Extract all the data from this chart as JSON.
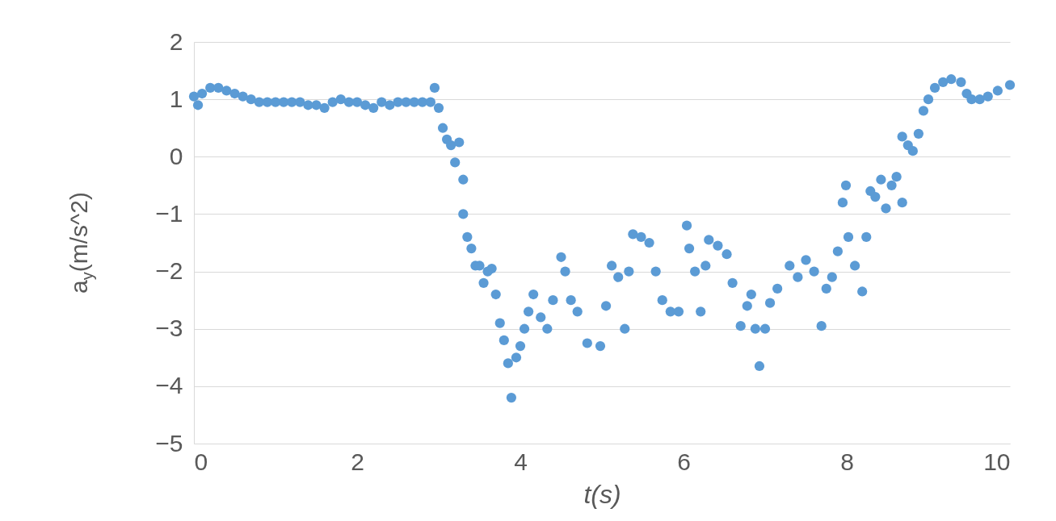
{
  "chart_data": {
    "type": "scatter",
    "xlabel": "t(s)",
    "ylabel": "a$_{y}$(m/s^2)",
    "xlim": [
      0,
      10
    ],
    "xticks": [
      0,
      2,
      4,
      6,
      8,
      10
    ],
    "ylim": [
      -5,
      2
    ],
    "yticks": [
      -5,
      -4,
      -3,
      -2,
      -1,
      0,
      1,
      2
    ],
    "grid": "y",
    "marker": "circle",
    "color": "#5b9bd5",
    "x": [
      0,
      0.05,
      0.1,
      0.2,
      0.3,
      0.4,
      0.5,
      0.6,
      0.7,
      0.8,
      0.9,
      1.0,
      1.1,
      1.2,
      1.3,
      1.4,
      1.5,
      1.6,
      1.7,
      1.8,
      1.9,
      2.0,
      2.1,
      2.2,
      2.3,
      2.4,
      2.5,
      2.6,
      2.7,
      2.8,
      2.9,
      2.95,
      3.0,
      3.05,
      3.1,
      3.15,
      3.2,
      3.25,
      3.3,
      3.3,
      3.35,
      3.4,
      3.45,
      3.5,
      3.55,
      3.6,
      3.65,
      3.7,
      3.75,
      3.8,
      3.85,
      3.89,
      3.95,
      4.0,
      4.05,
      4.1,
      4.16,
      4.25,
      4.33,
      4.4,
      4.5,
      4.55,
      4.62,
      4.7,
      4.82,
      4.98,
      5.05,
      5.12,
      5.2,
      5.28,
      5.33,
      5.38,
      5.48,
      5.58,
      5.66,
      5.74,
      5.84,
      5.94,
      6.04,
      6.07,
      6.14,
      6.21,
      6.27,
      6.31,
      6.42,
      6.53,
      6.6,
      6.7,
      6.78,
      6.83,
      6.88,
      6.93,
      7.0,
      7.06,
      7.15,
      7.3,
      7.4,
      7.5,
      7.6,
      7.69,
      7.75,
      7.82,
      7.89,
      7.95,
      7.99,
      8.02,
      8.1,
      8.19,
      8.24,
      8.29,
      8.35,
      8.42,
      8.48,
      8.55,
      8.61,
      8.68,
      8.68,
      8.75,
      8.81,
      8.88,
      8.94,
      9.0,
      9.08,
      9.18,
      9.28,
      9.4,
      9.47,
      9.53,
      9.63,
      9.73,
      9.85,
      10.0
    ],
    "values": [
      1.05,
      0.9,
      1.1,
      1.2,
      1.2,
      1.15,
      1.1,
      1.05,
      1.0,
      0.95,
      0.95,
      0.95,
      0.95,
      0.95,
      0.95,
      0.9,
      0.9,
      0.85,
      0.95,
      1.0,
      0.95,
      0.95,
      0.9,
      0.85,
      0.95,
      0.9,
      0.95,
      0.95,
      0.95,
      0.95,
      0.95,
      1.2,
      0.85,
      0.5,
      0.3,
      0.2,
      -0.1,
      0.25,
      -0.4,
      -1.0,
      -1.4,
      -1.6,
      -1.9,
      -1.9,
      -2.2,
      -2.0,
      -1.95,
      -2.4,
      -2.9,
      -3.2,
      -3.6,
      -4.2,
      -3.5,
      -3.3,
      -3.0,
      -2.7,
      -2.4,
      -2.8,
      -3.0,
      -2.5,
      -1.75,
      -2.0,
      -2.5,
      -2.7,
      -3.25,
      -3.3,
      -2.6,
      -1.9,
      -2.1,
      -3.0,
      -2.0,
      -1.35,
      -1.4,
      -1.5,
      -2.0,
      -2.5,
      -2.7,
      -2.7,
      -1.2,
      -1.6,
      -2.0,
      -2.7,
      -1.9,
      -1.45,
      -1.55,
      -1.7,
      -2.2,
      -2.95,
      -2.6,
      -2.4,
      -3.0,
      -3.65,
      -3.0,
      -2.55,
      -2.3,
      -1.9,
      -2.1,
      -1.8,
      -2.0,
      -2.95,
      -2.3,
      -2.1,
      -1.65,
      -0.8,
      -0.5,
      -1.4,
      -1.9,
      -2.35,
      -1.4,
      -0.6,
      -0.7,
      -0.4,
      -0.9,
      -0.5,
      -0.35,
      -0.8,
      0.35,
      0.2,
      0.1,
      0.4,
      0.8,
      1.0,
      1.2,
      1.3,
      1.35,
      1.3,
      1.1,
      1.0,
      1.0,
      1.05,
      1.15,
      1.25
    ]
  }
}
